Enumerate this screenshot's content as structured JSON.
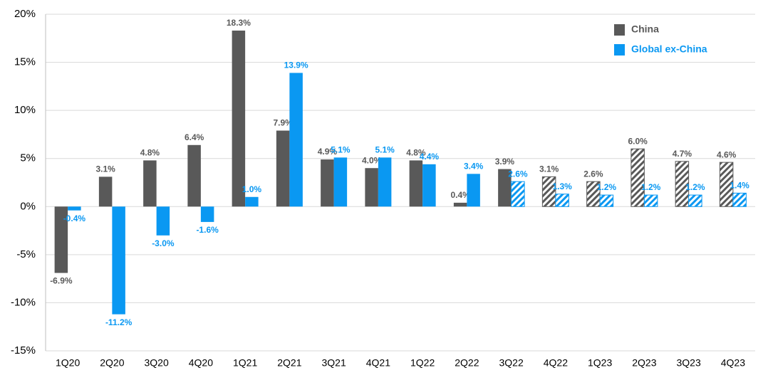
{
  "chart_data": {
    "type": "bar",
    "categories": [
      "1Q20",
      "2Q20",
      "3Q20",
      "4Q20",
      "1Q21",
      "2Q21",
      "3Q21",
      "4Q21",
      "1Q22",
      "2Q22",
      "3Q22",
      "4Q22",
      "1Q23",
      "2Q23",
      "3Q23",
      "4Q23"
    ],
    "series": [
      {
        "name": "China",
        "color": "#595959",
        "hatched_from": 11,
        "values": [
          -6.9,
          3.1,
          4.8,
          6.4,
          18.3,
          7.9,
          4.9,
          4.0,
          4.8,
          0.4,
          3.9,
          3.1,
          2.6,
          6.0,
          4.7,
          4.6
        ],
        "value_labels": [
          "-6.9%",
          "3.1%",
          "4.8%",
          "6.4%",
          "18.3%",
          "7.9%",
          "4.9%",
          "4.0%",
          "4.8%",
          "0.4%",
          "3.9%",
          "3.1%",
          "2.6%",
          "6.0%",
          "4.7%",
          "4.6%"
        ]
      },
      {
        "name": "Global ex-China",
        "color": "#0a98f2",
        "hatched_from": 10,
        "values": [
          -0.4,
          -11.2,
          -3.0,
          -1.6,
          1.0,
          13.9,
          5.1,
          5.1,
          4.4,
          3.4,
          2.6,
          1.3,
          1.2,
          1.2,
          1.2,
          1.4
        ],
        "value_labels": [
          "-0.4%",
          "-11.2%",
          "-3.0%",
          "-1.6%",
          "1.0%",
          "13.9%",
          "5.1%",
          "5.1%",
          "4.4%",
          "3.4%",
          "2.6%",
          "1.3%",
          "1.2%",
          "1.2%",
          "1.2%",
          "1.4%"
        ]
      }
    ],
    "ylim": [
      -15,
      20
    ],
    "yticks": [
      {
        "value": -15,
        "label": "-15%"
      },
      {
        "value": -10,
        "label": "-10%"
      },
      {
        "value": -5,
        "label": "-5%"
      },
      {
        "value": 0,
        "label": "0%"
      },
      {
        "value": 5,
        "label": "5%"
      },
      {
        "value": 10,
        "label": "10%"
      },
      {
        "value": 15,
        "label": "15%"
      },
      {
        "value": 20,
        "label": "20%"
      }
    ],
    "grid": true,
    "legend": "top-right"
  }
}
